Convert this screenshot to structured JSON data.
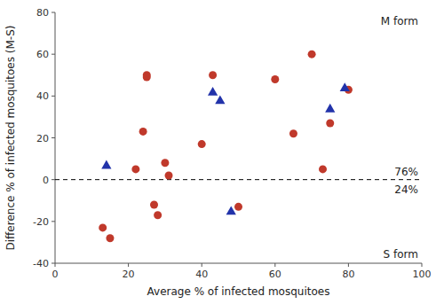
{
  "chart_data": {
    "type": "scatter",
    "series": [
      {
        "color": "#c0392b",
        "marker": "circle",
        "x": [
          13,
          15,
          22,
          24,
          25,
          25,
          27,
          28,
          30,
          31,
          40,
          43,
          50,
          60,
          65,
          70,
          73,
          75,
          80
        ],
        "values": [
          -23,
          -28,
          5,
          23,
          49,
          50,
          -12,
          -17,
          8,
          2,
          17,
          50,
          -13,
          48,
          22,
          60,
          5,
          27,
          43
        ]
      },
      {
        "color": "#2233aa",
        "marker": "triangle",
        "x": [
          14,
          43,
          45,
          48,
          75,
          79
        ],
        "values": [
          7,
          42,
          38,
          -15,
          34,
          44
        ]
      }
    ],
    "xlim": [
      0,
      100
    ],
    "ylim": [
      -40,
      80
    ],
    "xticks": [
      0,
      20,
      40,
      60,
      80,
      100
    ],
    "yticks": [
      -40,
      -20,
      0,
      20,
      40,
      60,
      80
    ],
    "xlabel": "Average % of infected mosquitoes",
    "ylabel": "Difference % of infected mosquitoes (M-S)",
    "hline": 0,
    "annotations": [
      "M form",
      "S form",
      "76%",
      "24%"
    ],
    "grid": false
  }
}
